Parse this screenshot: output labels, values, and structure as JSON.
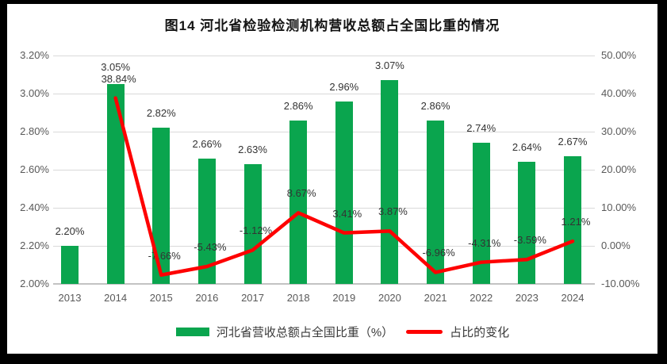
{
  "title": "图14 河北省检验检测机构营收总额占全国比重的情况",
  "chart_data": {
    "type": "bar",
    "combo": "bar+line",
    "categories": [
      "2013",
      "2014",
      "2015",
      "2016",
      "2017",
      "2018",
      "2019",
      "2020",
      "2021",
      "2022",
      "2023",
      "2024"
    ],
    "series": [
      {
        "name": "河北省营收总额占全国比重（%）",
        "type": "bar",
        "axis": "left",
        "color": "#0aa54e",
        "values": [
          2.2,
          3.05,
          2.82,
          2.66,
          2.63,
          2.86,
          2.96,
          3.07,
          2.86,
          2.74,
          2.64,
          2.67
        ],
        "labels": [
          "2.20%",
          "3.05%",
          "2.82%",
          "2.66%",
          "2.63%",
          "2.86%",
          "2.96%",
          "3.07%",
          "2.86%",
          "2.74%",
          "2.64%",
          "2.67%"
        ]
      },
      {
        "name": "占比的变化",
        "type": "line",
        "axis": "right",
        "color": "#fe0000",
        "values": [
          null,
          38.84,
          -7.66,
          -5.43,
          -1.12,
          8.67,
          3.41,
          3.87,
          -6.96,
          -4.31,
          -3.59,
          1.21
        ],
        "labels": [
          null,
          "38.84%",
          "-7.66%",
          "-5.43%",
          "-1.12%",
          "8.67%",
          "3.41%",
          "3.87%",
          "-6.96%",
          "-4.31%",
          "-3.59%",
          "1.21%"
        ]
      }
    ],
    "left_axis": {
      "min": 2.0,
      "max": 3.2,
      "ticks": [
        "3.20%",
        "3.00%",
        "2.80%",
        "2.60%",
        "2.40%",
        "2.20%",
        "2.00%"
      ]
    },
    "right_axis": {
      "min": -10,
      "max": 50,
      "ticks": [
        "50.00%",
        "40.00%",
        "30.00%",
        "20.00%",
        "10.00%",
        "0.00%",
        "-10.00%"
      ]
    },
    "legend_position": "bottom",
    "grid": true
  }
}
